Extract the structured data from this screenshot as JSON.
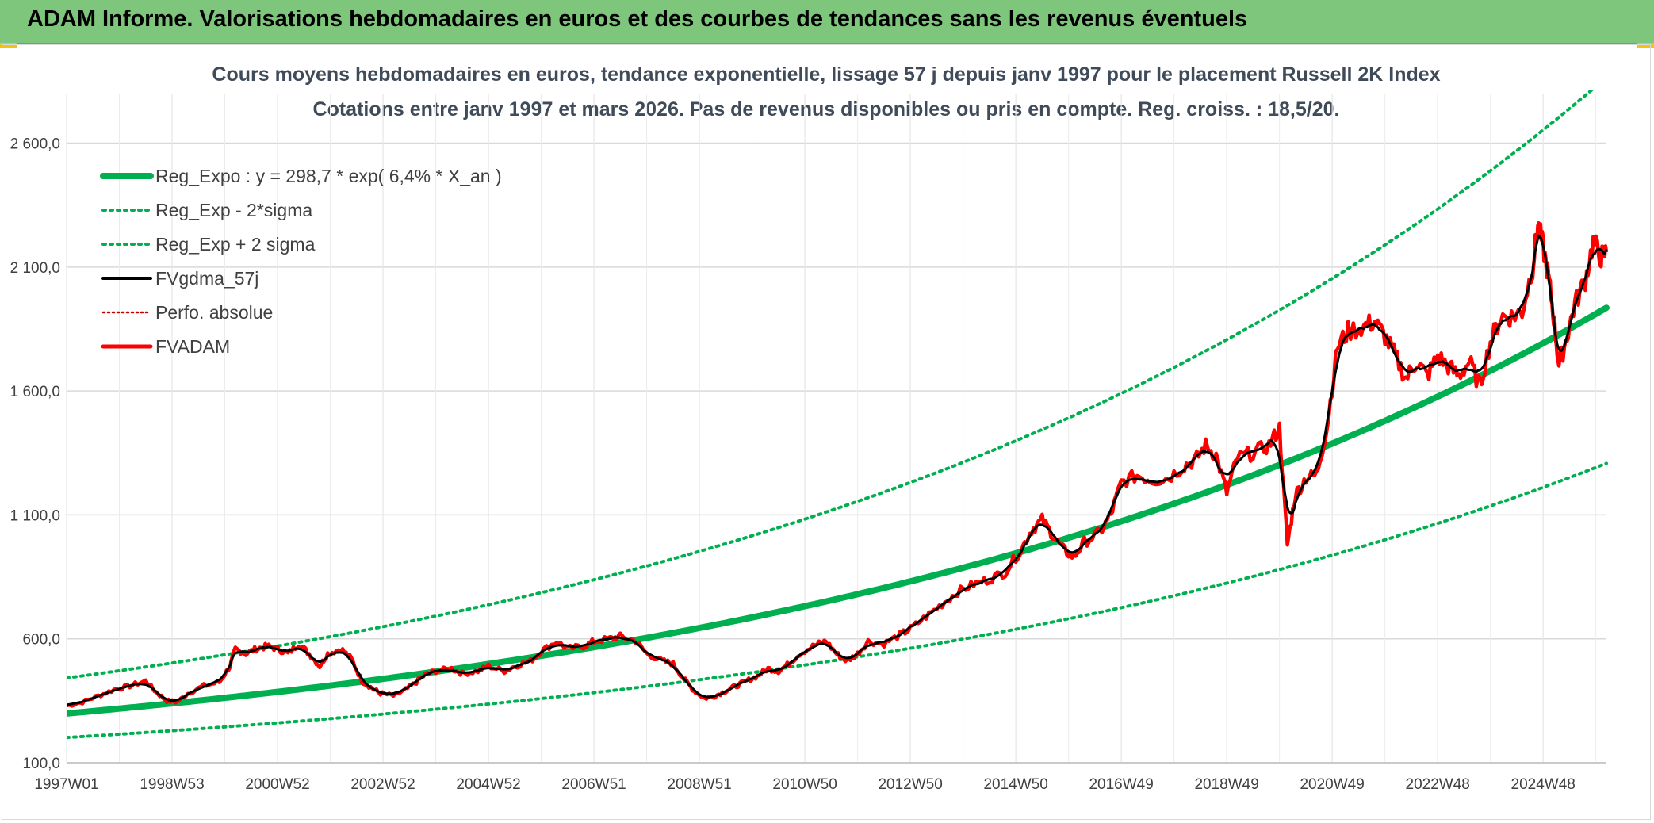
{
  "banner": {
    "title": "ADAM Informe. Valorisations hebdomadaires en euros et des courbes de tendances sans les revenus éventuels"
  },
  "chart_data": {
    "type": "line",
    "title": "Cours moyens hebdomadaires en euros, tendance exponentielle, lissage 57 j depuis janv 1997 pour le placement Russell 2K Index",
    "subtitle": "Cotations entre janv 1997 et mars 2026. Pas de revenus disponibles ou pris en compte. Reg. croiss. : 18,5/20.",
    "xlabel": "",
    "ylabel": "",
    "x_ticks": [
      "1997W01",
      "1998W53",
      "2000W52",
      "2002W52",
      "2004W52",
      "2006W51",
      "2008W51",
      "2010W50",
      "2012W50",
      "2014W50",
      "2016W49",
      "2018W49",
      "2020W49",
      "2022W48",
      "2024W48"
    ],
    "x_range": [
      1997.0,
      2026.2
    ],
    "y_ticks": [
      "100,0",
      "600,0",
      "1 100,0",
      "1 600,0",
      "2 100,0",
      "2 600,0"
    ],
    "ylim": [
      100,
      2800
    ],
    "grid": true,
    "legend_position": "top-left",
    "regression": {
      "a": 298.7,
      "rate": 0.064,
      "sigma_factor": 1.48
    },
    "series": [
      {
        "name": "Reg_Expo : y = 298,7 * exp( 6,4% *  X_an )",
        "color": "#00b050",
        "style": "solid-thick"
      },
      {
        "name": "Reg_Exp - 2*sigma",
        "color": "#00b050",
        "style": "dotted"
      },
      {
        "name": "Reg_Exp + 2 sigma",
        "color": "#00b050",
        "style": "dotted"
      },
      {
        "name": "FVgdma_57j",
        "color": "#000000",
        "style": "solid"
      },
      {
        "name": "Perfo. absolue",
        "color": "#c00000",
        "style": "dotted-thin"
      },
      {
        "name": "FVADAM",
        "color": "#ff0000",
        "style": "solid-thick",
        "points": [
          [
            1997.0,
            330
          ],
          [
            1997.3,
            345
          ],
          [
            1997.6,
            370
          ],
          [
            1997.9,
            395
          ],
          [
            1998.2,
            410
          ],
          [
            1998.5,
            430
          ],
          [
            1998.7,
            385
          ],
          [
            1998.9,
            350
          ],
          [
            1999.1,
            345
          ],
          [
            1999.3,
            380
          ],
          [
            1999.6,
            410
          ],
          [
            1999.9,
            425
          ],
          [
            2000.1,
            490
          ],
          [
            2000.2,
            560
          ],
          [
            2000.4,
            540
          ],
          [
            2000.6,
            560
          ],
          [
            2000.8,
            570
          ],
          [
            2001.0,
            560
          ],
          [
            2001.2,
            540
          ],
          [
            2001.4,
            580
          ],
          [
            2001.6,
            540
          ],
          [
            2001.8,
            490
          ],
          [
            2001.95,
            540
          ],
          [
            2002.2,
            560
          ],
          [
            2002.4,
            520
          ],
          [
            2002.6,
            430
          ],
          [
            2002.8,
            400
          ],
          [
            2002.95,
            380
          ],
          [
            2003.2,
            370
          ],
          [
            2003.4,
            390
          ],
          [
            2003.6,
            420
          ],
          [
            2003.8,
            455
          ],
          [
            2004.0,
            470
          ],
          [
            2004.3,
            480
          ],
          [
            2004.5,
            460
          ],
          [
            2004.8,
            470
          ],
          [
            2005.0,
            490
          ],
          [
            2005.3,
            470
          ],
          [
            2005.5,
            490
          ],
          [
            2005.8,
            510
          ],
          [
            2006.0,
            550
          ],
          [
            2006.3,
            590
          ],
          [
            2006.5,
            560
          ],
          [
            2006.8,
            570
          ],
          [
            2007.0,
            590
          ],
          [
            2007.3,
            600
          ],
          [
            2007.5,
            610
          ],
          [
            2007.8,
            590
          ],
          [
            2008.0,
            540
          ],
          [
            2008.3,
            510
          ],
          [
            2008.5,
            500
          ],
          [
            2008.7,
            440
          ],
          [
            2008.9,
            390
          ],
          [
            2009.1,
            360
          ],
          [
            2009.3,
            370
          ],
          [
            2009.5,
            390
          ],
          [
            2009.7,
            410
          ],
          [
            2009.9,
            430
          ],
          [
            2010.1,
            450
          ],
          [
            2010.3,
            480
          ],
          [
            2010.5,
            470
          ],
          [
            2010.7,
            500
          ],
          [
            2010.9,
            540
          ],
          [
            2011.2,
            575
          ],
          [
            2011.4,
            590
          ],
          [
            2011.6,
            540
          ],
          [
            2011.8,
            510
          ],
          [
            2012.0,
            540
          ],
          [
            2012.2,
            590
          ],
          [
            2012.5,
            580
          ],
          [
            2012.8,
            615
          ],
          [
            2013.0,
            640
          ],
          [
            2013.3,
            690
          ],
          [
            2013.6,
            740
          ],
          [
            2013.9,
            790
          ],
          [
            2014.2,
            820
          ],
          [
            2014.5,
            840
          ],
          [
            2014.8,
            870
          ],
          [
            2015.1,
            960
          ],
          [
            2015.3,
            1040
          ],
          [
            2015.5,
            1080
          ],
          [
            2015.7,
            1020
          ],
          [
            2015.9,
            960
          ],
          [
            2016.1,
            930
          ],
          [
            2016.3,
            990
          ],
          [
            2016.6,
            1030
          ],
          [
            2016.8,
            1100
          ],
          [
            2017.0,
            1230
          ],
          [
            2017.3,
            1260
          ],
          [
            2017.6,
            1240
          ],
          [
            2017.9,
            1250
          ],
          [
            2018.2,
            1300
          ],
          [
            2018.4,
            1320
          ],
          [
            2018.6,
            1380
          ],
          [
            2018.8,
            1340
          ],
          [
            2019.0,
            1190
          ],
          [
            2019.2,
            1330
          ],
          [
            2019.5,
            1350
          ],
          [
            2019.8,
            1380
          ],
          [
            2020.0,
            1450
          ],
          [
            2020.15,
            980
          ],
          [
            2020.3,
            1180
          ],
          [
            2020.5,
            1250
          ],
          [
            2020.7,
            1260
          ],
          [
            2020.9,
            1450
          ],
          [
            2021.1,
            1780
          ],
          [
            2021.3,
            1840
          ],
          [
            2021.6,
            1860
          ],
          [
            2021.8,
            1880
          ],
          [
            2022.0,
            1820
          ],
          [
            2022.2,
            1740
          ],
          [
            2022.4,
            1650
          ],
          [
            2022.6,
            1720
          ],
          [
            2022.8,
            1660
          ],
          [
            2023.0,
            1740
          ],
          [
            2023.2,
            1700
          ],
          [
            2023.4,
            1660
          ],
          [
            2023.6,
            1720
          ],
          [
            2023.8,
            1620
          ],
          [
            2024.0,
            1800
          ],
          [
            2024.2,
            1900
          ],
          [
            2024.4,
            1900
          ],
          [
            2024.6,
            1920
          ],
          [
            2024.8,
            2100
          ],
          [
            2024.9,
            2270
          ],
          [
            2025.0,
            2180
          ],
          [
            2025.1,
            2060
          ],
          [
            2025.2,
            1900
          ],
          [
            2025.3,
            1700
          ],
          [
            2025.45,
            1820
          ],
          [
            2025.6,
            1950
          ],
          [
            2025.8,
            2050
          ],
          [
            2025.95,
            2200
          ],
          [
            2026.1,
            2140
          ],
          [
            2026.2,
            2160
          ]
        ]
      }
    ]
  }
}
